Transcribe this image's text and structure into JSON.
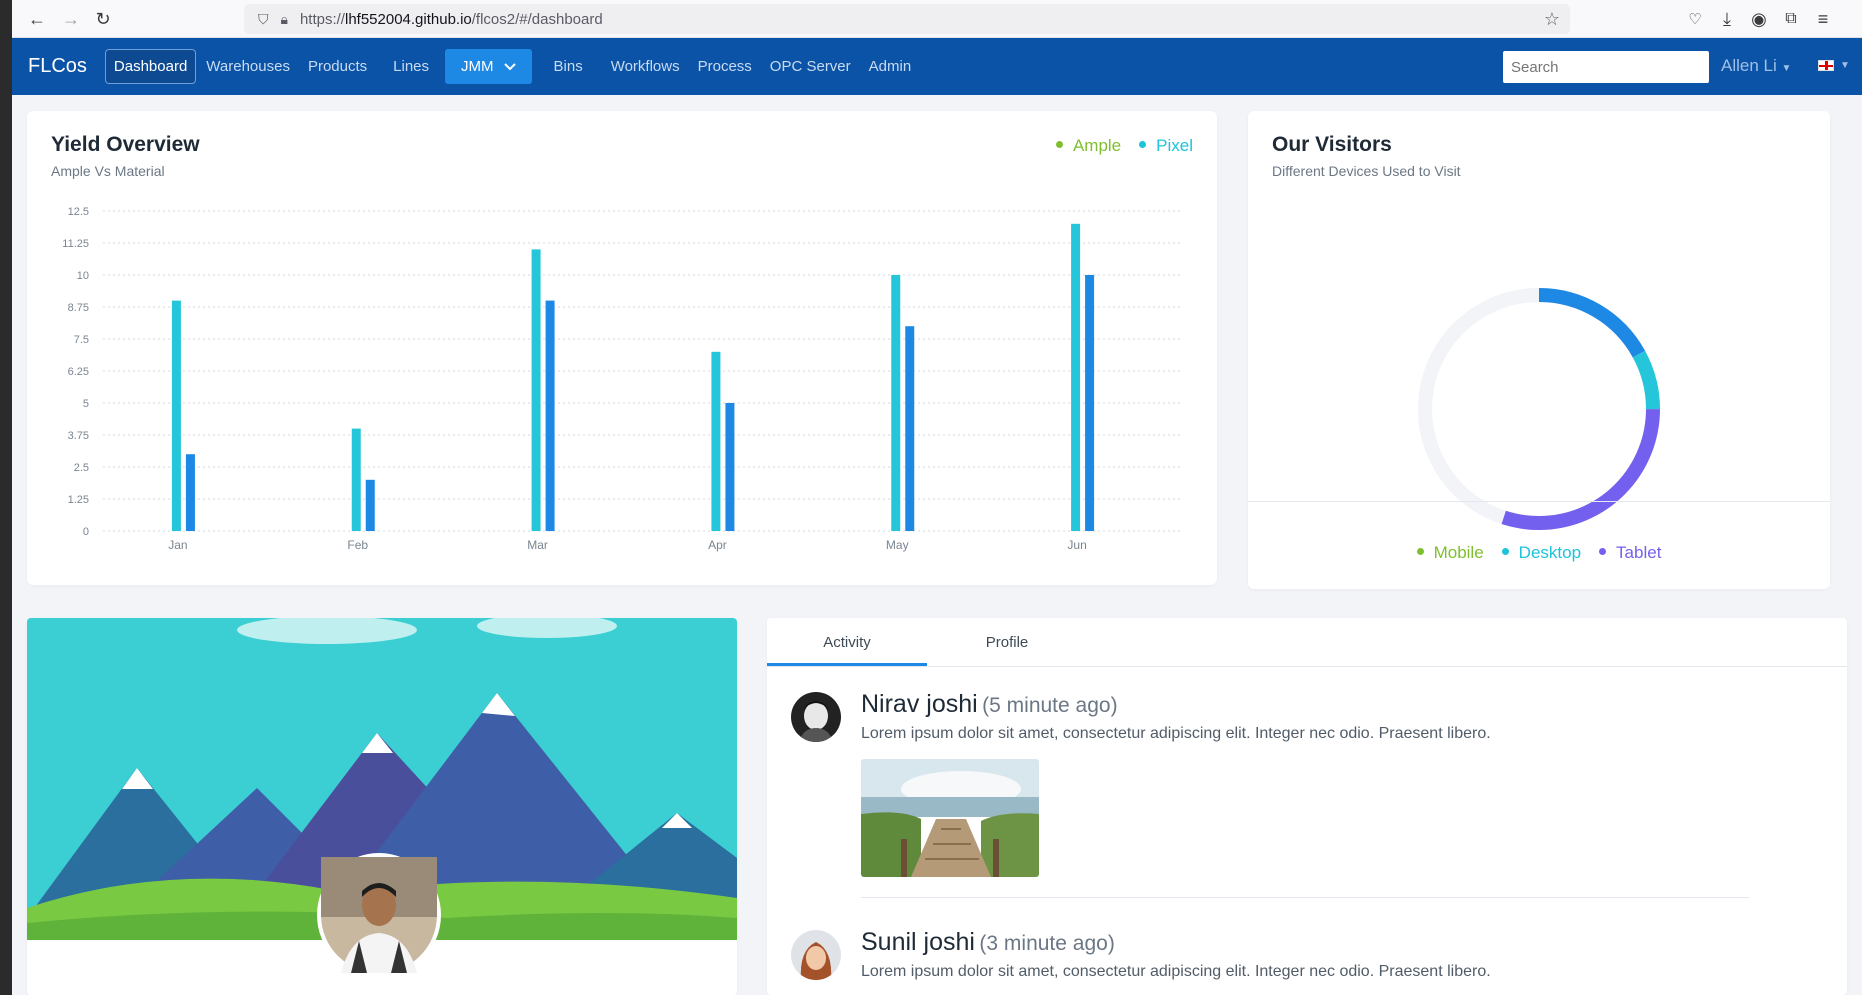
{
  "browser": {
    "url_prefix": "https://",
    "url_domain": "lhf552004.github.io",
    "url_path": "/flcos2/#/dashboard"
  },
  "nav": {
    "brand": "FLCos",
    "items": [
      {
        "label": "Dashboard",
        "active": true
      },
      {
        "label": "Warehouses"
      },
      {
        "label": "Products"
      },
      {
        "label": "Lines"
      }
    ],
    "dropdown_label": "JMM",
    "items2": [
      {
        "label": "Bins"
      },
      {
        "label": "Workflows"
      },
      {
        "label": "Process"
      },
      {
        "label": "OPC Server"
      },
      {
        "label": "Admin"
      }
    ],
    "search_placeholder": "Search",
    "user": "Allen Li"
  },
  "yield": {
    "title": "Yield Overview",
    "subtitle": "Ample Vs Material",
    "legend": [
      {
        "label": "Ample",
        "color": "#7fbf2f"
      },
      {
        "label": "Pixel",
        "color": "#1ec3d9"
      }
    ]
  },
  "chart_data": {
    "type": "bar",
    "categories": [
      "Jan",
      "Feb",
      "Mar",
      "Apr",
      "May",
      "Jun"
    ],
    "series": [
      {
        "name": "Ample",
        "color": "#26c6da",
        "values": [
          9,
          4,
          11,
          7,
          10,
          12
        ]
      },
      {
        "name": "Pixel",
        "color": "#1e88e5",
        "values": [
          3,
          2,
          9,
          5,
          8,
          10
        ]
      }
    ],
    "yticks": [
      "0",
      "1.25",
      "2.5",
      "3.75",
      "5",
      "6.25",
      "7.5",
      "8.75",
      "10",
      "11.25",
      "12.5"
    ],
    "ylim": [
      0,
      12.5
    ],
    "grid": true
  },
  "visitors": {
    "title": "Our Visitors",
    "subtitle": "Different Devices Used to Visit",
    "legend": [
      {
        "label": "Mobile",
        "color": "#7fbf2f"
      },
      {
        "label": "Desktop",
        "color": "#1ec3d9"
      },
      {
        "label": "Tablet",
        "color": "#7460ee"
      }
    ],
    "donut": {
      "type": "pie",
      "segments": [
        {
          "color": "#1e88e5",
          "value": 17
        },
        {
          "color": "#26c6da",
          "value": 8
        },
        {
          "color": "#7460ee",
          "value": 30
        },
        {
          "color": "#f2f4f8",
          "value": 45
        }
      ]
    }
  },
  "activity": {
    "tabs": [
      {
        "label": "Activity",
        "active": true
      },
      {
        "label": "Profile"
      }
    ],
    "items": [
      {
        "name": "Nirav joshi",
        "time": "(5 minute ago)",
        "text": "Lorem ipsum dolor sit amet, consectetur adipiscing elit. Integer nec odio. Praesent libero."
      },
      {
        "name": "Sunil joshi",
        "time": "(3 minute ago)",
        "text": "Lorem ipsum dolor sit amet, consectetur adipiscing elit. Integer nec odio. Praesent libero."
      }
    ]
  }
}
